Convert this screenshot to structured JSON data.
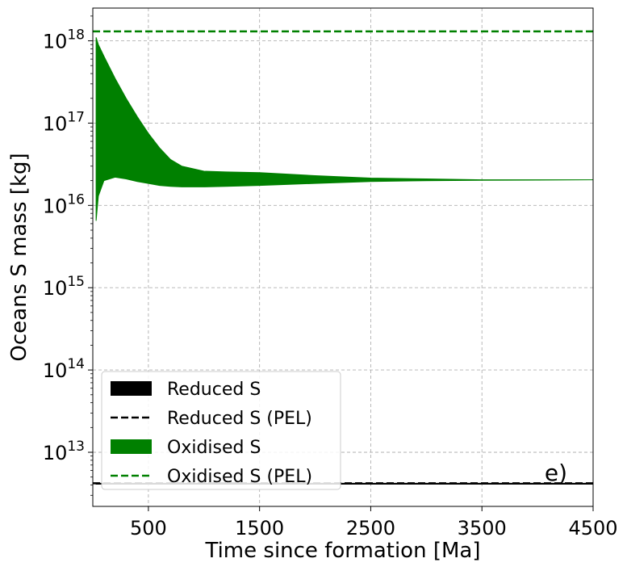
{
  "chart_data": {
    "type": "area",
    "title": "",
    "xlabel": "Time since formation [Ma]",
    "ylabel": "Oceans S mass [kg]",
    "xlim": [
      0,
      4500
    ],
    "ylim": [
      2200000000000.0,
      2.5e+18
    ],
    "yscale": "log",
    "grid": true,
    "legend_position": "lower-left",
    "panel_label": "e)",
    "x_ticks": [
      {
        "value": 500,
        "label": "500"
      },
      {
        "value": 1500,
        "label": "1500"
      },
      {
        "value": 2500,
        "label": "2500"
      },
      {
        "value": 3500,
        "label": "3500"
      },
      {
        "value": 4500,
        "label": "4500"
      }
    ],
    "y_ticks": [
      {
        "value": 10000000000000.0,
        "base": "10",
        "exp": "13"
      },
      {
        "value": 100000000000000.0,
        "base": "10",
        "exp": "14"
      },
      {
        "value": 1000000000000000.0,
        "base": "10",
        "exp": "15"
      },
      {
        "value": 1e+16,
        "base": "10",
        "exp": "16"
      },
      {
        "value": 1e+17,
        "base": "10",
        "exp": "17"
      },
      {
        "value": 1e+18,
        "base": "10",
        "exp": "18"
      }
    ],
    "series": [
      {
        "name": "Reduced S",
        "kind": "band",
        "color": "#000000",
        "x": [
          30,
          4500
        ],
        "lower": [
          4100000000000.0,
          4100000000000.0
        ],
        "upper": [
          4200000000000.0,
          4200000000000.0
        ]
      },
      {
        "name": "Reduced S (PEL)",
        "kind": "dashed-line",
        "color": "#000000",
        "x": [
          0,
          4500
        ],
        "y": [
          4200000000000.0,
          4200000000000.0
        ]
      },
      {
        "name": "Oxidised S",
        "kind": "band",
        "color": "#008000",
        "x": [
          30,
          50,
          100,
          200,
          300,
          400,
          500,
          600,
          700,
          800,
          1000,
          1200,
          1500,
          2000,
          2500,
          3000,
          3500,
          4000,
          4500
        ],
        "upper": [
          1.1e+18,
          9e+17,
          6.5e+17,
          3.5e+17,
          2e+17,
          1.2e+17,
          7.5e+16,
          5e+16,
          3.6e+16,
          3e+16,
          2.6e+16,
          2.55e+16,
          2.5e+16,
          2.3e+16,
          2.15e+16,
          2.1e+16,
          2.05e+16,
          2.05e+16,
          2.05e+16
        ],
        "lower": [
          6500000000000000.0,
          1.3e+16,
          2e+16,
          2.2e+16,
          2.1e+16,
          1.95e+16,
          1.85e+16,
          1.75e+16,
          1.7e+16,
          1.68e+16,
          1.68e+16,
          1.7e+16,
          1.75e+16,
          1.85e+16,
          1.95e+16,
          2e+16,
          2.02e+16,
          2.03e+16,
          2.05e+16
        ]
      },
      {
        "name": "Oxidised S (PEL)",
        "kind": "dashed-line",
        "color": "#008000",
        "x": [
          0,
          4500
        ],
        "y": [
          1.3e+18,
          1.3e+18
        ]
      }
    ]
  }
}
